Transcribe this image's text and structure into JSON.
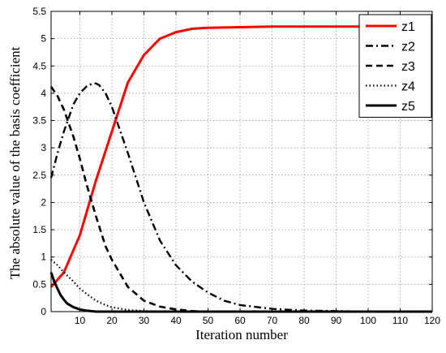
{
  "chart_data": {
    "type": "line",
    "title": "",
    "xlabel": "Iteration number",
    "ylabel": "The absolute value of the basis coefficient",
    "xlim": [
      1,
      120
    ],
    "ylim": [
      0,
      5.5
    ],
    "xticks": [
      10,
      20,
      30,
      40,
      50,
      60,
      70,
      80,
      90,
      100,
      110,
      120
    ],
    "yticks": [
      0,
      0.5,
      1,
      1.5,
      2,
      2.5,
      3,
      3.5,
      4,
      4.5,
      5,
      5.5
    ],
    "grid": true,
    "legend_position": "top-right",
    "series": [
      {
        "name": "z1",
        "color": "#ff0000",
        "style": "solid",
        "x": [
          1,
          5,
          10,
          12,
          15,
          20,
          25,
          30,
          35,
          40,
          45,
          50,
          60,
          70,
          80,
          100,
          120
        ],
        "y": [
          0.45,
          0.72,
          1.4,
          1.8,
          2.4,
          3.3,
          4.2,
          4.7,
          5.0,
          5.12,
          5.18,
          5.2,
          5.21,
          5.22,
          5.22,
          5.22,
          5.22
        ]
      },
      {
        "name": "z2",
        "color": "#000000",
        "style": "dashdot",
        "x": [
          1,
          3,
          5,
          8,
          10,
          12,
          14,
          15,
          16,
          18,
          20,
          25,
          30,
          35,
          40,
          45,
          50,
          55,
          60,
          70,
          80,
          90,
          100,
          120
        ],
        "y": [
          2.45,
          2.9,
          3.3,
          3.8,
          4.0,
          4.12,
          4.18,
          4.18,
          4.15,
          4.0,
          3.75,
          2.9,
          2.0,
          1.3,
          0.85,
          0.55,
          0.35,
          0.2,
          0.12,
          0.05,
          0.02,
          0.01,
          0.0,
          0.0
        ]
      },
      {
        "name": "z3",
        "color": "#000000",
        "style": "dashed",
        "x": [
          1,
          3,
          5,
          8,
          10,
          12,
          15,
          18,
          20,
          25,
          30,
          35,
          40,
          45,
          50,
          60,
          80,
          120
        ],
        "y": [
          4.12,
          3.95,
          3.7,
          3.2,
          2.8,
          2.35,
          1.75,
          1.2,
          0.95,
          0.45,
          0.2,
          0.09,
          0.04,
          0.01,
          0.0,
          0.0,
          0.0,
          0.0
        ]
      },
      {
        "name": "z4",
        "color": "#000000",
        "style": "dotted",
        "x": [
          1,
          3,
          5,
          8,
          10,
          12,
          15,
          18,
          20,
          25,
          30,
          40,
          60,
          120
        ],
        "y": [
          0.95,
          0.85,
          0.72,
          0.55,
          0.42,
          0.33,
          0.2,
          0.12,
          0.08,
          0.03,
          0.01,
          0.0,
          0.0,
          0.0
        ]
      },
      {
        "name": "z5",
        "color": "#000000",
        "style": "solid",
        "x": [
          1,
          2,
          3,
          4,
          5,
          6,
          8,
          10,
          12,
          15,
          20,
          30,
          60,
          120
        ],
        "y": [
          0.72,
          0.55,
          0.42,
          0.3,
          0.22,
          0.15,
          0.08,
          0.04,
          0.02,
          0.0,
          0.0,
          0.0,
          0.0,
          0.0
        ]
      }
    ]
  }
}
